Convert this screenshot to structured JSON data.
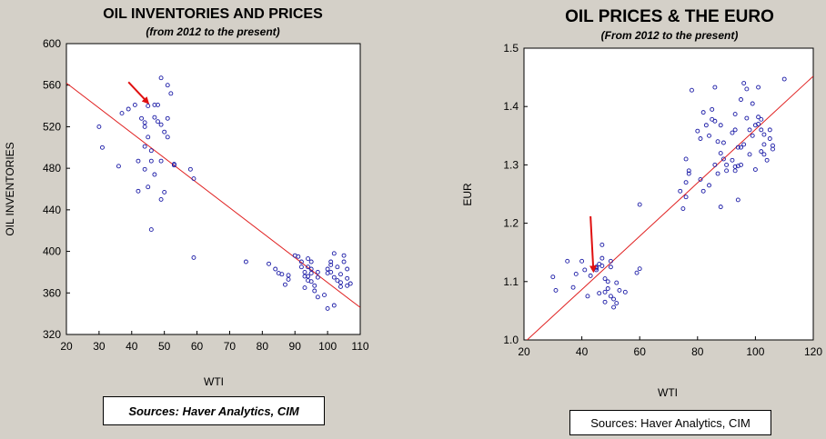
{
  "chart_data": [
    {
      "type": "scatter",
      "title": "OIL INVENTORIES AND PRICES",
      "subtitle": "(from 2012 to the present)",
      "xlabel": "WTI",
      "ylabel": "OIL INVENTORIES",
      "xlim": [
        20,
        110
      ],
      "ylim": [
        320,
        600
      ],
      "xticks": [
        "20",
        "30",
        "40",
        "50",
        "60",
        "70",
        "80",
        "90",
        "100",
        "110"
      ],
      "yticks": [
        "320",
        "360",
        "400",
        "440",
        "480",
        "520",
        "560",
        "600"
      ],
      "grid": false,
      "marker_color": "#1a1aa6",
      "line_color": "#e02020",
      "fit_line": [
        [
          20,
          562
        ],
        [
          110,
          346
        ]
      ],
      "arrow": {
        "from": [
          39,
          563
        ],
        "to": [
          45,
          543
        ],
        "color": "#e01010"
      },
      "source": "Sources:  Haver Analytics, CIM",
      "points": [
        [
          30,
          520
        ],
        [
          31,
          500
        ],
        [
          36,
          482
        ],
        [
          37,
          533
        ],
        [
          39,
          537
        ],
        [
          41,
          541
        ],
        [
          42,
          487
        ],
        [
          42,
          458
        ],
        [
          43,
          528
        ],
        [
          44,
          479
        ],
        [
          44,
          524
        ],
        [
          44,
          520
        ],
        [
          44,
          501
        ],
        [
          45,
          540
        ],
        [
          45,
          510
        ],
        [
          45,
          462
        ],
        [
          46,
          497
        ],
        [
          46,
          487
        ],
        [
          46,
          421
        ],
        [
          47,
          541
        ],
        [
          47,
          529
        ],
        [
          47,
          474
        ],
        [
          48,
          541
        ],
        [
          48,
          525
        ],
        [
          49,
          567
        ],
        [
          49,
          522
        ],
        [
          49,
          487
        ],
        [
          49,
          450
        ],
        [
          50,
          515
        ],
        [
          50,
          457
        ],
        [
          51,
          560
        ],
        [
          51,
          528
        ],
        [
          51,
          510
        ],
        [
          52,
          552
        ],
        [
          53,
          484
        ],
        [
          53,
          483
        ],
        [
          58,
          479
        ],
        [
          59,
          470
        ],
        [
          59,
          394
        ],
        [
          75,
          390
        ],
        [
          82,
          388
        ],
        [
          84,
          383
        ],
        [
          85,
          379
        ],
        [
          86,
          378
        ],
        [
          87,
          368
        ],
        [
          88,
          373
        ],
        [
          88,
          377
        ],
        [
          90,
          396
        ],
        [
          91,
          395
        ],
        [
          92,
          390
        ],
        [
          92,
          385
        ],
        [
          93,
          380
        ],
        [
          93,
          376
        ],
        [
          93,
          365
        ],
        [
          94,
          393
        ],
        [
          94,
          385
        ],
        [
          94,
          376
        ],
        [
          94,
          372
        ],
        [
          95,
          390
        ],
        [
          95,
          383
        ],
        [
          95,
          379
        ],
        [
          95,
          371
        ],
        [
          96,
          367
        ],
        [
          96,
          362
        ],
        [
          97,
          356
        ],
        [
          97,
          380
        ],
        [
          97,
          375
        ],
        [
          99,
          358
        ],
        [
          100,
          383
        ],
        [
          100,
          379
        ],
        [
          100,
          345
        ],
        [
          101,
          390
        ],
        [
          101,
          387
        ],
        [
          101,
          380
        ],
        [
          102,
          398
        ],
        [
          102,
          375
        ],
        [
          102,
          348
        ],
        [
          103,
          385
        ],
        [
          103,
          372
        ],
        [
          104,
          378
        ],
        [
          104,
          370
        ],
        [
          104,
          366
        ],
        [
          105,
          396
        ],
        [
          105,
          390
        ],
        [
          106,
          383
        ],
        [
          106,
          374
        ],
        [
          106,
          367
        ],
        [
          107,
          369
        ]
      ]
    },
    {
      "type": "scatter",
      "title": "OIL PRICES & THE EURO",
      "subtitle": "(From 2012 to the present)",
      "xlabel": "WTI",
      "ylabel": "EUR",
      "xlim": [
        20,
        120
      ],
      "ylim": [
        1.0,
        1.5
      ],
      "xticks": [
        "20",
        "40",
        "60",
        "80",
        "100",
        "120"
      ],
      "yticks": [
        "1.0",
        "1.1",
        "1.2",
        "1.3",
        "1.4",
        "1.5"
      ],
      "grid": false,
      "marker_color": "#1a1aa6",
      "line_color": "#e02020",
      "fit_line": [
        [
          20,
          0.995
        ],
        [
          120,
          1.452
        ]
      ],
      "arrow": {
        "from": [
          43,
          1.212
        ],
        "to": [
          44,
          1.118
        ],
        "color": "#e01010"
      },
      "source": "Sources:  Haver Analytics, CIM",
      "points": [
        [
          30,
          1.108
        ],
        [
          31,
          1.085
        ],
        [
          35,
          1.135
        ],
        [
          37,
          1.09
        ],
        [
          38,
          1.113
        ],
        [
          40,
          1.135
        ],
        [
          41,
          1.12
        ],
        [
          42,
          1.075
        ],
        [
          43,
          1.11
        ],
        [
          44,
          1.123
        ],
        [
          45,
          1.12
        ],
        [
          45,
          1.125
        ],
        [
          45,
          1.123
        ],
        [
          46,
          1.13
        ],
        [
          46,
          1.08
        ],
        [
          47,
          1.163
        ],
        [
          47,
          1.14
        ],
        [
          47,
          1.127
        ],
        [
          48,
          1.105
        ],
        [
          48,
          1.082
        ],
        [
          48,
          1.065
        ],
        [
          49,
          1.1
        ],
        [
          49,
          1.088
        ],
        [
          50,
          1.135
        ],
        [
          50,
          1.125
        ],
        [
          50,
          1.075
        ],
        [
          51,
          1.07
        ],
        [
          51,
          1.056
        ],
        [
          52,
          1.098
        ],
        [
          52,
          1.063
        ],
        [
          53,
          1.085
        ],
        [
          55,
          1.082
        ],
        [
          59,
          1.115
        ],
        [
          60,
          1.122
        ],
        [
          60,
          1.232
        ],
        [
          74,
          1.255
        ],
        [
          75,
          1.225
        ],
        [
          76,
          1.27
        ],
        [
          76,
          1.245
        ],
        [
          76,
          1.31
        ],
        [
          77,
          1.285
        ],
        [
          77,
          1.29
        ],
        [
          78,
          1.428
        ],
        [
          80,
          1.358
        ],
        [
          81,
          1.275
        ],
        [
          81,
          1.345
        ],
        [
          82,
          1.39
        ],
        [
          82,
          1.255
        ],
        [
          83,
          1.368
        ],
        [
          84,
          1.35
        ],
        [
          84,
          1.265
        ],
        [
          85,
          1.395
        ],
        [
          85,
          1.378
        ],
        [
          86,
          1.3
        ],
        [
          86,
          1.375
        ],
        [
          86,
          1.433
        ],
        [
          87,
          1.285
        ],
        [
          87,
          1.34
        ],
        [
          88,
          1.32
        ],
        [
          88,
          1.228
        ],
        [
          88,
          1.368
        ],
        [
          89,
          1.31
        ],
        [
          89,
          1.338
        ],
        [
          90,
          1.29
        ],
        [
          90,
          1.3
        ],
        [
          92,
          1.355
        ],
        [
          92,
          1.308
        ],
        [
          93,
          1.297
        ],
        [
          93,
          1.29
        ],
        [
          93,
          1.36
        ],
        [
          93,
          1.387
        ],
        [
          94,
          1.24
        ],
        [
          94,
          1.33
        ],
        [
          94,
          1.298
        ],
        [
          95,
          1.33
        ],
        [
          95,
          1.3
        ],
        [
          95,
          1.412
        ],
        [
          96,
          1.44
        ],
        [
          96,
          1.335
        ],
        [
          97,
          1.38
        ],
        [
          97,
          1.43
        ],
        [
          98,
          1.36
        ],
        [
          98,
          1.318
        ],
        [
          99,
          1.405
        ],
        [
          99,
          1.35
        ],
        [
          100,
          1.292
        ],
        [
          100,
          1.368
        ],
        [
          101,
          1.433
        ],
        [
          101,
          1.382
        ],
        [
          101,
          1.37
        ],
        [
          102,
          1.378
        ],
        [
          102,
          1.36
        ],
        [
          102,
          1.323
        ],
        [
          103,
          1.352
        ],
        [
          103,
          1.335
        ],
        [
          103,
          1.318
        ],
        [
          104,
          1.308
        ],
        [
          105,
          1.36
        ],
        [
          105,
          1.345
        ],
        [
          106,
          1.333
        ],
        [
          106,
          1.327
        ],
        [
          110,
          1.447
        ]
      ]
    }
  ]
}
